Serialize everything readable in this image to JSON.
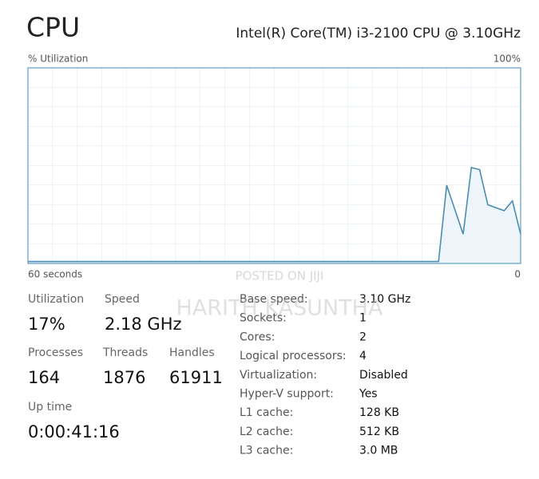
{
  "header": {
    "title": "CPU",
    "processor": "Intel(R) Core(TM) i3-2100 CPU @ 3.10GHz"
  },
  "chart_data": {
    "type": "line",
    "y_label": "% Utilization",
    "x": [
      60,
      10,
      9,
      7,
      6,
      5,
      4,
      2,
      1,
      0
    ],
    "values": [
      1,
      1,
      40,
      15,
      49,
      48,
      30,
      27,
      32,
      15
    ],
    "color": "#4a8db0",
    "fill": "#eef5fa",
    "grid": true,
    "xlim": [
      60,
      0
    ],
    "xticks": [
      {
        "value": 60,
        "label": "60 seconds"
      },
      0
    ],
    "ylim": [
      0,
      100
    ],
    "yticks": [
      {
        "value": 100,
        "label": "100%"
      }
    ]
  },
  "stats": [
    {
      "label": "Utilization",
      "value": "17%"
    },
    {
      "label": "Speed",
      "value": "2.18 GHz"
    },
    {
      "label": "Processes",
      "value": "164"
    },
    {
      "label": "Threads",
      "value": "1876"
    },
    {
      "label": "Handles",
      "value": "61911"
    },
    {
      "label": "Up time",
      "value": "0:00:41:16"
    }
  ],
  "specs": [
    {
      "label": "Base speed:",
      "value": "3.10 GHz"
    },
    {
      "label": "Sockets:",
      "value": "1"
    },
    {
      "label": "Cores:",
      "value": "2"
    },
    {
      "label": "Logical processors:",
      "value": "4"
    },
    {
      "label": "Virtualization:",
      "value": "Disabled"
    },
    {
      "label": "Hyper-V support:",
      "value": "Yes"
    },
    {
      "label": "L1 cache:",
      "value": "128 KB"
    },
    {
      "label": "L2 cache:",
      "value": "512 KB"
    },
    {
      "label": "L3 cache:",
      "value": "3.0 MB"
    }
  ],
  "watermarks": [
    "POSTED ON JIJI",
    "HARITH KASUNTHA"
  ]
}
